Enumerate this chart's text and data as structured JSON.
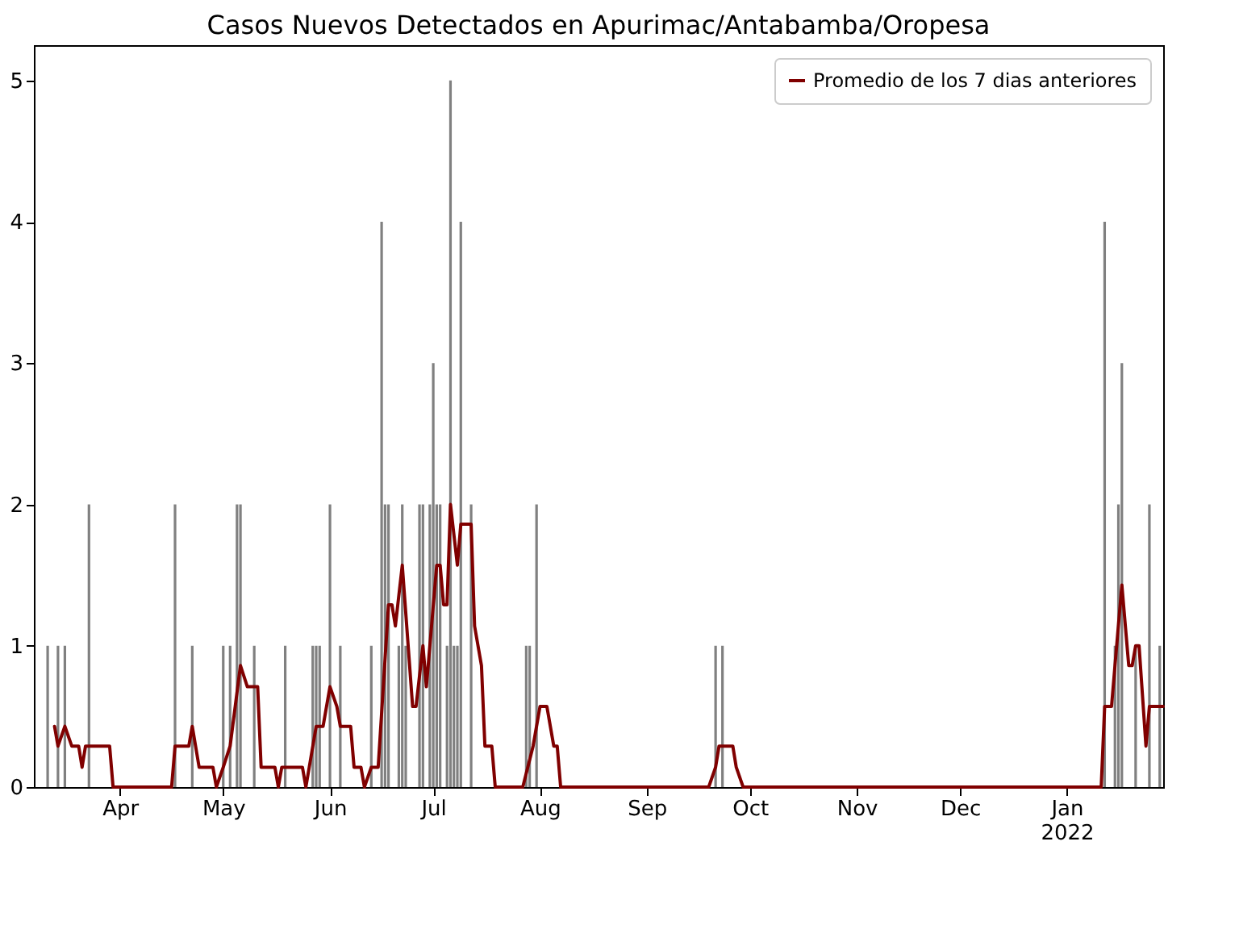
{
  "chart_data": {
    "type": "bar",
    "title": "Casos Nuevos Detectados en Apurimac/Antabamba/Oropesa",
    "xlim": [
      "2021-03-07",
      "2022-01-29"
    ],
    "xticks": [
      {
        "value": "2021-04-01",
        "label": "Apr"
      },
      {
        "value": "2021-05-01",
        "label": "May"
      },
      {
        "value": "2021-06-01",
        "label": "Jun"
      },
      {
        "value": "2021-07-01",
        "label": "Jul"
      },
      {
        "value": "2021-08-01",
        "label": "Aug"
      },
      {
        "value": "2021-09-01",
        "label": "Sep"
      },
      {
        "value": "2021-10-01",
        "label": "Oct"
      },
      {
        "value": "2021-11-01",
        "label": "Nov"
      },
      {
        "value": "2021-12-01",
        "label": "Dec"
      },
      {
        "value": "2022-01-01",
        "label": "Jan\n2022"
      }
    ],
    "ylim": [
      0,
      5.25
    ],
    "yticks": [
      0,
      1,
      2,
      3,
      4,
      5
    ],
    "grid": false,
    "legend": "top right",
    "series": [
      {
        "color": "#808080",
        "x": [
          "2021-03-11",
          "2021-03-14",
          "2021-03-16",
          "2021-03-23",
          "2021-04-17",
          "2021-04-22",
          "2021-05-01",
          "2021-05-03",
          "2021-05-05",
          "2021-05-06",
          "2021-05-10",
          "2021-05-19",
          "2021-05-27",
          "2021-05-28",
          "2021-05-29",
          "2021-06-01",
          "2021-06-04",
          "2021-06-13",
          "2021-06-16",
          "2021-06-17",
          "2021-06-18",
          "2021-06-21",
          "2021-06-22",
          "2021-06-23",
          "2021-06-27",
          "2021-06-28",
          "2021-06-30",
          "2021-07-01",
          "2021-07-02",
          "2021-07-03",
          "2021-07-05",
          "2021-07-06",
          "2021-07-07",
          "2021-07-08",
          "2021-07-09",
          "2021-07-12",
          "2021-07-28",
          "2021-07-29",
          "2021-07-31",
          "2021-09-21",
          "2021-09-23",
          "2022-01-12",
          "2022-01-15",
          "2022-01-16",
          "2022-01-17",
          "2022-01-21",
          "2022-01-25",
          "2022-01-28"
        ],
        "values": [
          1,
          1,
          1,
          2,
          2,
          1,
          1,
          1,
          2,
          2,
          1,
          1,
          1,
          1,
          1,
          2,
          1,
          1,
          4,
          2,
          2,
          1,
          2,
          1,
          2,
          2,
          2,
          3,
          2,
          2,
          1,
          5,
          1,
          1,
          4,
          2,
          1,
          1,
          2,
          1,
          1,
          4,
          1,
          2,
          3,
          1,
          2,
          1
        ]
      },
      {
        "type": "line",
        "name": "Promedio de los 7 dias anteriores",
        "color": "#800000",
        "x": [
          "2021-03-13",
          "2021-03-14",
          "2021-03-16",
          "2021-03-18",
          "2021-03-20",
          "2021-03-21",
          "2021-03-22",
          "2021-03-29",
          "2021-03-30",
          "2021-04-16",
          "2021-04-17",
          "2021-04-21",
          "2021-04-22",
          "2021-04-24",
          "2021-04-28",
          "2021-04-29",
          "2021-05-01",
          "2021-05-03",
          "2021-05-06",
          "2021-05-08",
          "2021-05-11",
          "2021-05-12",
          "2021-05-16",
          "2021-05-17",
          "2021-05-18",
          "2021-05-24",
          "2021-05-25",
          "2021-05-28",
          "2021-05-30",
          "2021-06-01",
          "2021-06-03",
          "2021-06-04",
          "2021-06-07",
          "2021-06-08",
          "2021-06-10",
          "2021-06-11",
          "2021-06-13",
          "2021-06-15",
          "2021-06-18",
          "2021-06-19",
          "2021-06-20",
          "2021-06-22",
          "2021-06-25",
          "2021-06-26",
          "2021-06-28",
          "2021-06-29",
          "2021-07-02",
          "2021-07-03",
          "2021-07-04",
          "2021-07-05",
          "2021-07-06",
          "2021-07-08",
          "2021-07-09",
          "2021-07-12",
          "2021-07-13",
          "2021-07-15",
          "2021-07-16",
          "2021-07-18",
          "2021-07-19",
          "2021-07-27",
          "2021-07-30",
          "2021-08-01",
          "2021-08-03",
          "2021-08-05",
          "2021-08-06",
          "2021-08-07",
          "2021-09-19",
          "2021-09-21",
          "2021-09-22",
          "2021-09-26",
          "2021-09-27",
          "2021-09-29",
          "2022-01-11",
          "2022-01-12",
          "2022-01-14",
          "2022-01-15",
          "2022-01-17",
          "2022-01-19",
          "2022-01-20",
          "2022-01-21",
          "2022-01-22",
          "2022-01-24",
          "2022-01-25",
          "2022-01-29"
        ],
        "values": [
          0.43,
          0.29,
          0.43,
          0.29,
          0.29,
          0.14,
          0.29,
          0.29,
          0,
          0,
          0.29,
          0.29,
          0.43,
          0.14,
          0.14,
          0,
          0.14,
          0.29,
          0.86,
          0.71,
          0.71,
          0.14,
          0.14,
          0,
          0.14,
          0.14,
          0,
          0.43,
          0.43,
          0.71,
          0.57,
          0.43,
          0.43,
          0.14,
          0.14,
          0,
          0.14,
          0.14,
          1.29,
          1.29,
          1.14,
          1.57,
          0.57,
          0.57,
          1.0,
          0.71,
          1.57,
          1.57,
          1.29,
          1.29,
          2.0,
          1.57,
          1.86,
          1.86,
          1.14,
          0.86,
          0.29,
          0.29,
          0,
          0,
          0.29,
          0.57,
          0.57,
          0.29,
          0.29,
          0,
          0,
          0.14,
          0.29,
          0.29,
          0.14,
          0,
          0,
          0.57,
          0.57,
          0.86,
          1.43,
          0.86,
          0.86,
          1.0,
          1.0,
          0.29,
          0.57,
          0.57
        ]
      }
    ]
  }
}
